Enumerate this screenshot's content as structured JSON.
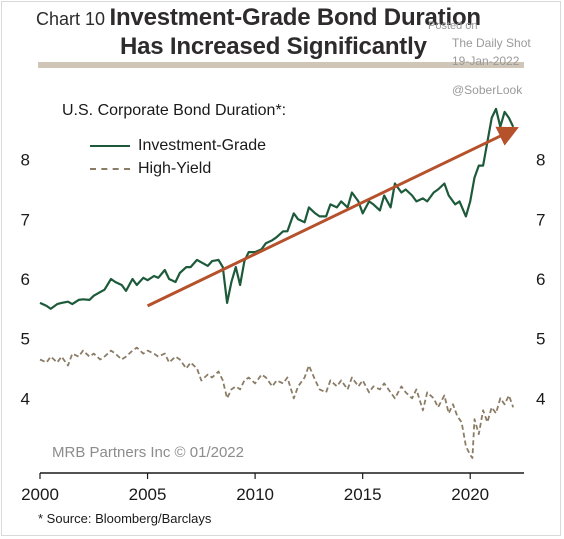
{
  "title": {
    "chart_number": "Chart 10",
    "line1": "Investment-Grade Bond Duration",
    "line2": "Has Increased Significantly"
  },
  "watermark": {
    "posted": "Posted on",
    "site": "The Daily Shot",
    "date": "19-Jan-2022",
    "handle": "@SoberLook"
  },
  "colors": {
    "ig": "#1d5a3a",
    "hy": "#8b7c66",
    "trend": "#b5512b",
    "rule": "#cfc6b8"
  },
  "credit": "MRB Partners Inc © 01/2022",
  "source": "* Source: Bloomberg/Barclays",
  "chart_data": {
    "type": "line",
    "title": "U.S. Corporate Bond Duration*:",
    "xlim": [
      2000,
      2022.5
    ],
    "ylim": [
      3,
      9
    ],
    "x_ticks": [
      "2000",
      "2005",
      "2010",
      "2015",
      "2020"
    ],
    "y_ticks": [
      "4",
      "5",
      "6",
      "7",
      "8"
    ],
    "legend_position": "top-left",
    "series": [
      {
        "name": "Investment-Grade",
        "style": "solid",
        "x": [
          2000.0,
          2000.3,
          2000.5,
          2000.8,
          2001.0,
          2001.3,
          2001.5,
          2001.8,
          2002.0,
          2002.3,
          2002.5,
          2002.8,
          2003.0,
          2003.3,
          2003.5,
          2003.8,
          2004.0,
          2004.3,
          2004.5,
          2004.8,
          2005.0,
          2005.3,
          2005.5,
          2005.8,
          2006.0,
          2006.3,
          2006.5,
          2006.8,
          2007.0,
          2007.3,
          2007.5,
          2007.8,
          2008.0,
          2008.3,
          2008.5,
          2008.7,
          2008.9,
          2009.1,
          2009.3,
          2009.5,
          2009.7,
          2010.0,
          2010.3,
          2010.5,
          2010.8,
          2011.0,
          2011.3,
          2011.5,
          2011.8,
          2012.0,
          2012.3,
          2012.5,
          2012.8,
          2013.0,
          2013.3,
          2013.5,
          2013.8,
          2014.0,
          2014.3,
          2014.5,
          2014.8,
          2015.0,
          2015.3,
          2015.5,
          2015.8,
          2016.0,
          2016.3,
          2016.5,
          2016.8,
          2017.0,
          2017.3,
          2017.5,
          2017.8,
          2018.0,
          2018.3,
          2018.5,
          2018.8,
          2019.0,
          2019.3,
          2019.5,
          2019.8,
          2020.0,
          2020.2,
          2020.4,
          2020.6,
          2020.8,
          2021.0,
          2021.2,
          2021.4,
          2021.6,
          2021.8,
          2022.0
        ],
        "values": [
          5.6,
          5.55,
          5.5,
          5.58,
          5.6,
          5.62,
          5.58,
          5.65,
          5.66,
          5.65,
          5.72,
          5.78,
          5.82,
          6.0,
          5.95,
          5.9,
          5.8,
          6.0,
          5.9,
          6.02,
          5.98,
          6.05,
          6.02,
          6.15,
          6.0,
          5.95,
          6.1,
          6.2,
          6.2,
          6.32,
          6.28,
          6.22,
          6.3,
          6.32,
          6.2,
          5.6,
          5.95,
          6.2,
          5.9,
          6.3,
          6.45,
          6.45,
          6.5,
          6.6,
          6.65,
          6.7,
          6.8,
          6.8,
          7.1,
          7.0,
          6.95,
          7.2,
          7.1,
          7.05,
          7.05,
          7.25,
          7.2,
          7.3,
          7.2,
          7.45,
          7.3,
          7.1,
          7.3,
          7.25,
          7.15,
          7.4,
          7.2,
          7.6,
          7.45,
          7.5,
          7.4,
          7.3,
          7.35,
          7.3,
          7.45,
          7.5,
          7.6,
          7.4,
          7.25,
          7.3,
          7.05,
          7.3,
          7.7,
          7.9,
          7.9,
          8.3,
          8.7,
          8.85,
          8.55,
          8.8,
          8.7,
          8.55
        ]
      },
      {
        "name": "High-Yield",
        "style": "dashed",
        "x": [
          2000.0,
          2000.3,
          2000.5,
          2000.8,
          2001.0,
          2001.3,
          2001.5,
          2001.8,
          2002.0,
          2002.3,
          2002.5,
          2002.8,
          2003.0,
          2003.3,
          2003.5,
          2003.8,
          2004.0,
          2004.3,
          2004.5,
          2004.8,
          2005.0,
          2005.3,
          2005.5,
          2005.8,
          2006.0,
          2006.3,
          2006.5,
          2006.8,
          2007.0,
          2007.3,
          2007.5,
          2007.8,
          2008.0,
          2008.3,
          2008.5,
          2008.7,
          2008.9,
          2009.1,
          2009.3,
          2009.5,
          2009.7,
          2010.0,
          2010.3,
          2010.5,
          2010.8,
          2011.0,
          2011.3,
          2011.5,
          2011.8,
          2012.0,
          2012.3,
          2012.5,
          2012.8,
          2013.0,
          2013.3,
          2013.5,
          2013.8,
          2014.0,
          2014.3,
          2014.5,
          2014.8,
          2015.0,
          2015.3,
          2015.5,
          2015.8,
          2016.0,
          2016.3,
          2016.5,
          2016.8,
          2017.0,
          2017.3,
          2017.5,
          2017.8,
          2018.0,
          2018.3,
          2018.5,
          2018.8,
          2019.0,
          2019.2,
          2019.4,
          2019.6,
          2019.8,
          2020.0,
          2020.1,
          2020.2,
          2020.4,
          2020.6,
          2020.8,
          2021.0,
          2021.2,
          2021.4,
          2021.6,
          2021.8,
          2022.0
        ],
        "values": [
          4.65,
          4.6,
          4.7,
          4.6,
          4.7,
          4.55,
          4.75,
          4.7,
          4.8,
          4.7,
          4.75,
          4.65,
          4.7,
          4.8,
          4.75,
          4.65,
          4.7,
          4.8,
          4.85,
          4.75,
          4.8,
          4.75,
          4.7,
          4.75,
          4.6,
          4.7,
          4.65,
          4.5,
          4.6,
          4.5,
          4.3,
          4.4,
          4.35,
          4.45,
          4.3,
          4.0,
          4.15,
          4.2,
          4.15,
          4.3,
          4.35,
          4.25,
          4.4,
          4.35,
          4.2,
          4.3,
          4.25,
          4.35,
          4.0,
          4.2,
          4.35,
          4.55,
          4.3,
          4.15,
          4.1,
          4.3,
          4.2,
          4.3,
          4.15,
          4.35,
          4.2,
          4.3,
          4.1,
          4.2,
          4.15,
          4.25,
          4.1,
          4.0,
          4.2,
          4.1,
          4.0,
          4.15,
          3.8,
          4.1,
          4.0,
          3.85,
          4.05,
          3.75,
          3.9,
          3.7,
          3.6,
          3.2,
          3.05,
          3.0,
          3.65,
          3.4,
          3.8,
          3.6,
          3.85,
          3.75,
          4.0,
          3.9,
          4.05,
          3.85
        ]
      }
    ],
    "annotations": [
      {
        "type": "trend-arrow",
        "x": [
          2005.0,
          2022.0
        ],
        "y": [
          5.55,
          8.5
        ]
      }
    ]
  }
}
